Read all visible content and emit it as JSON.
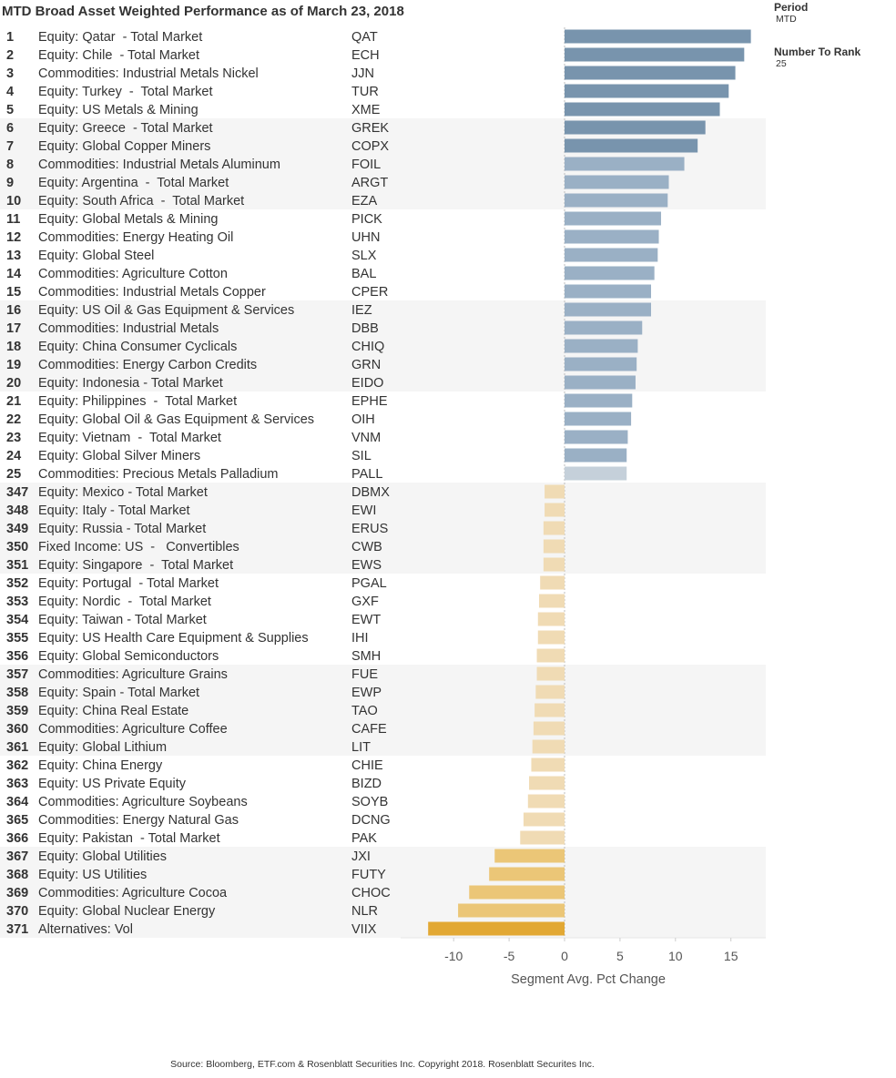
{
  "title": "MTD Broad Asset Weighted Performance as of March 23, 2018",
  "controls": {
    "period_label": "Period",
    "period_value": "MTD",
    "rank_label": "Number To Rank",
    "rank_value": "25"
  },
  "source": "Source: Bloomberg, ETF.com & Rosenblatt Securities Inc. Copyright 2018. Rosenblatt Securites Inc.",
  "colors": {
    "pos_dark": "#7894ad",
    "pos_mid": "#9ab0c5",
    "pos_light": "#c5d0da",
    "neg_light": "#f0dbb4",
    "neg_mid": "#ebc677",
    "neg_dark": "#e2a834",
    "band": "#f5f5f5"
  },
  "chart_data": {
    "type": "bar",
    "orientation": "horizontal",
    "title": "MTD Broad Asset Weighted Performance as of March 23, 2018",
    "xlabel": "Segment Avg. Pct Change",
    "xlim": [
      -12.5,
      18
    ],
    "xticks": [
      -10,
      -5,
      0,
      5,
      10,
      15
    ],
    "rows": [
      {
        "rank": "1",
        "name": "Equity: Qatar  - Total Market",
        "ticker": "QAT",
        "value": 16.8
      },
      {
        "rank": "2",
        "name": "Equity: Chile  - Total Market",
        "ticker": "ECH",
        "value": 16.2
      },
      {
        "rank": "3",
        "name": "Commodities: Industrial Metals Nickel",
        "ticker": "JJN",
        "value": 15.4
      },
      {
        "rank": "4",
        "name": "Equity: Turkey  -  Total Market",
        "ticker": "TUR",
        "value": 14.8
      },
      {
        "rank": "5",
        "name": "Equity: US Metals & Mining",
        "ticker": "XME",
        "value": 14.0
      },
      {
        "rank": "6",
        "name": "Equity: Greece  - Total Market",
        "ticker": "GREK",
        "value": 12.7
      },
      {
        "rank": "7",
        "name": "Equity: Global Copper Miners",
        "ticker": "COPX",
        "value": 12.0
      },
      {
        "rank": "8",
        "name": "Commodities: Industrial Metals Aluminum",
        "ticker": "FOIL",
        "value": 10.8
      },
      {
        "rank": "9",
        "name": "Equity: Argentina  -  Total Market",
        "ticker": "ARGT",
        "value": 9.4
      },
      {
        "rank": "10",
        "name": "Equity: South Africa  -  Total Market",
        "ticker": "EZA",
        "value": 9.3
      },
      {
        "rank": "11",
        "name": "Equity: Global Metals & Mining",
        "ticker": "PICK",
        "value": 8.7
      },
      {
        "rank": "12",
        "name": "Commodities: Energy Heating Oil",
        "ticker": "UHN",
        "value": 8.5
      },
      {
        "rank": "13",
        "name": "Equity: Global Steel",
        "ticker": "SLX",
        "value": 8.4
      },
      {
        "rank": "14",
        "name": "Commodities: Agriculture Cotton",
        "ticker": "BAL",
        "value": 8.1
      },
      {
        "rank": "15",
        "name": "Commodities: Industrial Metals Copper",
        "ticker": "CPER",
        "value": 7.8
      },
      {
        "rank": "16",
        "name": "Equity: US Oil & Gas Equipment & Services",
        "ticker": "IEZ",
        "value": 7.8
      },
      {
        "rank": "17",
        "name": "Commodities: Industrial Metals",
        "ticker": "DBB",
        "value": 7.0
      },
      {
        "rank": "18",
        "name": "Equity: China Consumer Cyclicals",
        "ticker": "CHIQ",
        "value": 6.6
      },
      {
        "rank": "19",
        "name": "Commodities: Energy Carbon Credits",
        "ticker": "GRN",
        "value": 6.5
      },
      {
        "rank": "20",
        "name": "Equity: Indonesia - Total Market",
        "ticker": "EIDO",
        "value": 6.4
      },
      {
        "rank": "21",
        "name": "Equity: Philippines  -  Total Market",
        "ticker": "EPHE",
        "value": 6.1
      },
      {
        "rank": "22",
        "name": "Equity: Global Oil & Gas Equipment & Services",
        "ticker": "OIH",
        "value": 6.0
      },
      {
        "rank": "23",
        "name": "Equity: Vietnam  -  Total Market",
        "ticker": "VNM",
        "value": 5.7
      },
      {
        "rank": "24",
        "name": "Equity: Global Silver Miners",
        "ticker": "SIL",
        "value": 5.6
      },
      {
        "rank": "25",
        "name": "Commodities: Precious Metals Palladium",
        "ticker": "PALL",
        "value": 5.6
      },
      {
        "rank": "347",
        "name": "Equity: Mexico - Total Market",
        "ticker": "DBMX",
        "value": -1.8
      },
      {
        "rank": "348",
        "name": "Equity: Italy - Total Market",
        "ticker": "EWI",
        "value": -1.8
      },
      {
        "rank": "349",
        "name": "Equity: Russia - Total Market",
        "ticker": "ERUS",
        "value": -1.9
      },
      {
        "rank": "350",
        "name": "Fixed Income: US  -   Convertibles",
        "ticker": "CWB",
        "value": -1.9
      },
      {
        "rank": "351",
        "name": "Equity: Singapore  -  Total Market",
        "ticker": "EWS",
        "value": -1.9
      },
      {
        "rank": "352",
        "name": "Equity: Portugal  - Total Market",
        "ticker": "PGAL",
        "value": -2.2
      },
      {
        "rank": "353",
        "name": "Equity: Nordic  -  Total Market",
        "ticker": "GXF",
        "value": -2.3
      },
      {
        "rank": "354",
        "name": "Equity: Taiwan - Total Market",
        "ticker": "EWT",
        "value": -2.4
      },
      {
        "rank": "355",
        "name": "Equity: US Health Care Equipment & Supplies",
        "ticker": "IHI",
        "value": -2.4
      },
      {
        "rank": "356",
        "name": "Equity: Global Semiconductors",
        "ticker": "SMH",
        "value": -2.5
      },
      {
        "rank": "357",
        "name": "Commodities: Agriculture Grains",
        "ticker": "FUE",
        "value": -2.5
      },
      {
        "rank": "358",
        "name": "Equity: Spain - Total Market",
        "ticker": "EWP",
        "value": -2.6
      },
      {
        "rank": "359",
        "name": "Equity: China Real Estate",
        "ticker": "TAO",
        "value": -2.7
      },
      {
        "rank": "360",
        "name": "Commodities: Agriculture Coffee",
        "ticker": "CAFE",
        "value": -2.8
      },
      {
        "rank": "361",
        "name": "Equity: Global Lithium",
        "ticker": "LIT",
        "value": -2.9
      },
      {
        "rank": "362",
        "name": "Equity: China Energy",
        "ticker": "CHIE",
        "value": -3.0
      },
      {
        "rank": "363",
        "name": "Equity: US Private Equity",
        "ticker": "BIZD",
        "value": -3.2
      },
      {
        "rank": "364",
        "name": "Commodities: Agriculture Soybeans",
        "ticker": "SOYB",
        "value": -3.3
      },
      {
        "rank": "365",
        "name": "Commodities: Energy Natural Gas",
        "ticker": "DCNG",
        "value": -3.7
      },
      {
        "rank": "366",
        "name": "Equity: Pakistan  - Total Market",
        "ticker": "PAK",
        "value": -4.0
      },
      {
        "rank": "367",
        "name": "Equity: Global Utilities",
        "ticker": "JXI",
        "value": -6.3
      },
      {
        "rank": "368",
        "name": "Equity: US Utilities",
        "ticker": "FUTY",
        "value": -6.8
      },
      {
        "rank": "369",
        "name": "Commodities: Agriculture Cocoa",
        "ticker": "CHOC",
        "value": -8.6
      },
      {
        "rank": "370",
        "name": "Equity: Global Nuclear Energy",
        "ticker": "NLR",
        "value": -9.6
      },
      {
        "rank": "371",
        "name": "Alternatives: Vol",
        "ticker": "VIIX",
        "value": -12.3
      }
    ]
  }
}
